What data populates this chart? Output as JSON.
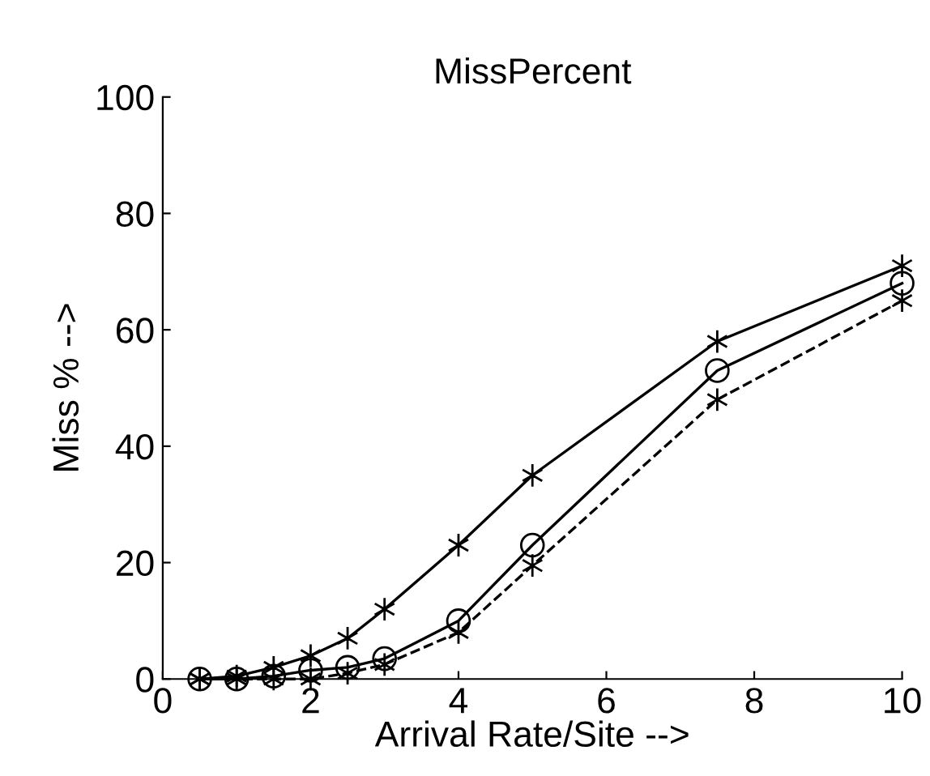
{
  "chart_data": {
    "type": "line",
    "title": "MissPercent",
    "xlabel": "Arrival Rate/Site -->",
    "ylabel": "Miss % -->",
    "x": [
      0.5,
      1,
      1.5,
      2,
      2.5,
      3,
      4,
      5,
      7.5,
      10
    ],
    "series": [
      {
        "color": "#000000",
        "marker": "cross",
        "line_style": "solid",
        "values": [
          0,
          0.5,
          2,
          4,
          7,
          12,
          23,
          35,
          58,
          71
        ]
      },
      {
        "color": "#000000",
        "marker": "circle",
        "line_style": "solid",
        "values": [
          0,
          0,
          0.5,
          1.5,
          2,
          3.5,
          10,
          23,
          53,
          68
        ]
      },
      {
        "color": "#000000",
        "marker": "cross",
        "line_style": "dashed",
        "values": [
          0,
          0,
          0,
          0,
          1,
          2.5,
          8,
          19.5,
          48,
          65
        ]
      }
    ],
    "xlim": [
      0,
      10
    ],
    "ylim": [
      0,
      100
    ],
    "xticks": [
      0,
      2,
      4,
      6,
      8,
      10
    ],
    "yticks": [
      0,
      20,
      40,
      60,
      80,
      100
    ],
    "grid": false,
    "legend": false
  }
}
